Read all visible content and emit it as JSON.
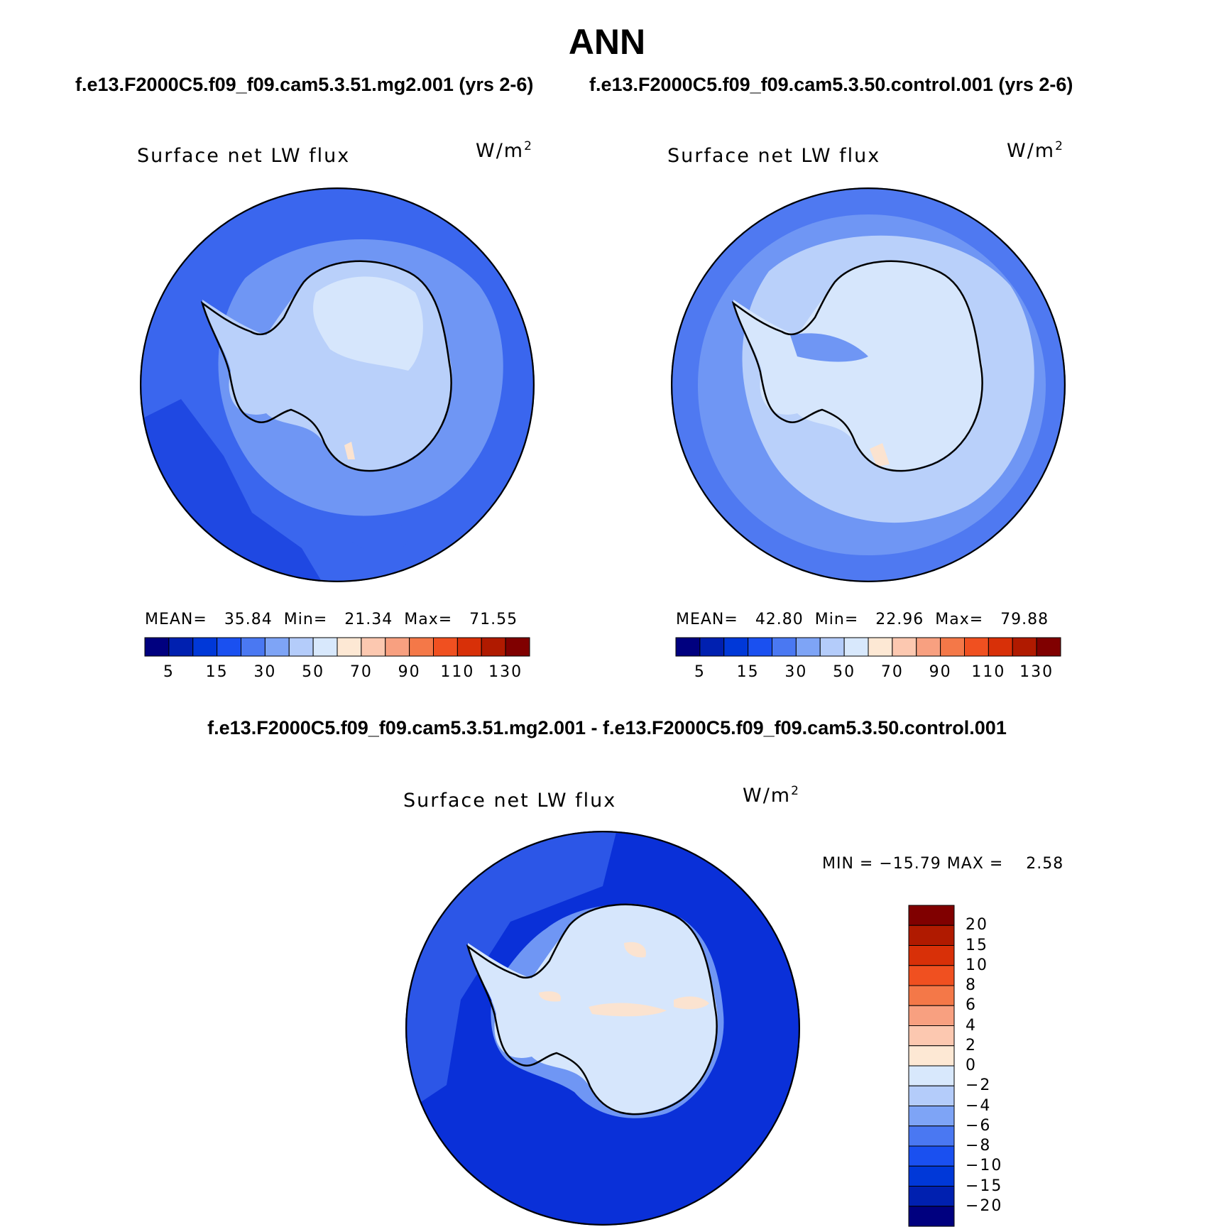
{
  "header": {
    "season": "ANN",
    "test_case": "f.e13.F2000C5.f09_f09.cam5.3.51.mg2.001 (yrs 2-6)",
    "control_case": "f.e13.F2000C5.f09_f09.cam5.3.50.control.001 (yrs 2-6)",
    "difference_title": "f.e13.F2000C5.f09_f09.cam5.3.51.mg2.001 - f.e13.F2000C5.f09_f09.cam5.3.50.control.001"
  },
  "panels": {
    "test": {
      "variable": "Surface net LW flux",
      "units_base": "W/m",
      "units_exp": "2",
      "mean_label": "MEAN=",
      "mean": "35.84",
      "min_label": "Min=",
      "min": "21.34",
      "max_label": "Max=",
      "max": "71.55"
    },
    "control": {
      "variable": "Surface net LW flux",
      "units_base": "W/m",
      "units_exp": "2",
      "mean_label": "MEAN=",
      "mean": "42.80",
      "min_label": "Min=",
      "min": "22.96",
      "max_label": "Max=",
      "max": "79.88"
    },
    "difference": {
      "variable": "Surface net LW flux",
      "units_base": "W/m",
      "units_exp": "2",
      "min_label": "MIN =",
      "min": "−15.79",
      "max_label": "MAX =",
      "max": "2.58"
    }
  },
  "colorbar_abs": {
    "colors": [
      "#00007f",
      "#0020b0",
      "#0038d8",
      "#1a50f0",
      "#4a78f2",
      "#7ea4f6",
      "#b4ccfa",
      "#d8e8fc",
      "#fde8d4",
      "#fcc8b0",
      "#f8a080",
      "#f47848",
      "#f05020",
      "#d83008",
      "#b01a00",
      "#800000"
    ],
    "tick_labels": [
      "5",
      "15",
      "30",
      "50",
      "70",
      "90",
      "110",
      "130"
    ]
  },
  "colorbar_diff": {
    "colors": [
      "#00007f",
      "#0020b0",
      "#0038d8",
      "#1a50f0",
      "#4a78f2",
      "#7ea4f6",
      "#b4ccfa",
      "#d8e8fc",
      "#fde8d4",
      "#fcc8b0",
      "#f8a080",
      "#f47848",
      "#f05020",
      "#d83008",
      "#b01a00",
      "#800000"
    ],
    "tick_labels": [
      "20",
      "15",
      "10",
      "8",
      "6",
      "4",
      "2",
      "0",
      "−2",
      "−4",
      "−6",
      "−8",
      "−10",
      "−15",
      "−20"
    ]
  },
  "map_colors": {
    "ocean_deep": "#0a30d8",
    "ocean_mid": "#3a66ee",
    "ocean_light": "#6f96f4",
    "ice_light": "#b9d0fa",
    "ice_lightest": "#d6e6fc",
    "warm_light": "#fbe3d0",
    "coast": "#000000"
  }
}
